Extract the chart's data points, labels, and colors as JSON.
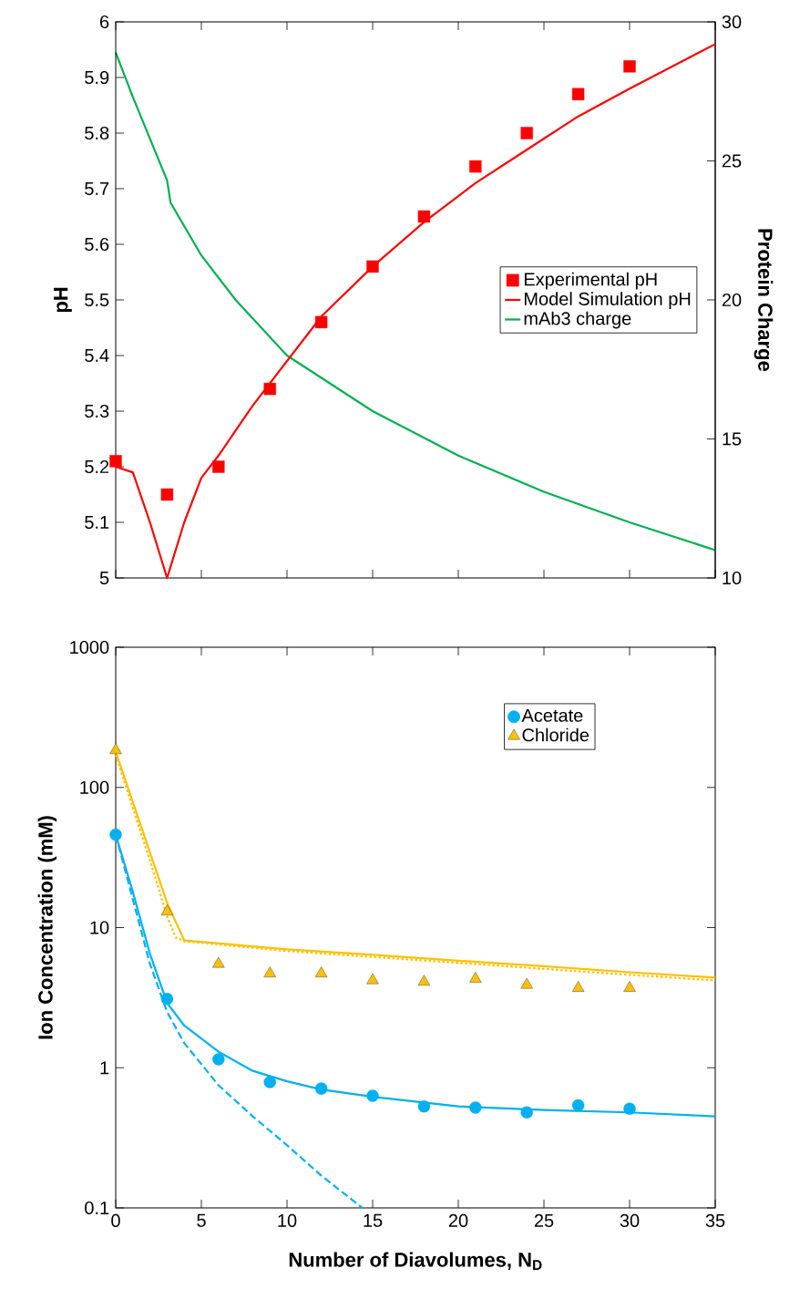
{
  "chart_data": [
    {
      "type": "scatter",
      "ylabel": "pH",
      "y2label": "Protein Charge",
      "xlim": [
        0,
        35
      ],
      "xticks": [
        0,
        5,
        10,
        15,
        20,
        25,
        30,
        35
      ],
      "ylim": [
        5,
        6
      ],
      "yticks": [
        5,
        5.1,
        5.2,
        5.3,
        5.4,
        5.5,
        5.6,
        5.7,
        5.8,
        5.9,
        6
      ],
      "y2lim": [
        10,
        30
      ],
      "y2ticks": [
        10,
        15,
        20,
        25,
        30
      ],
      "tick_labels": "y",
      "grid": false,
      "legend": "right",
      "series": [
        {
          "name": "Experimental pH",
          "marker": "square",
          "color": "#ff0000",
          "x": [
            0,
            3,
            6,
            9,
            12,
            15,
            18,
            21,
            24,
            27,
            30
          ],
          "values": [
            5.21,
            5.15,
            5.2,
            5.34,
            5.46,
            5.56,
            5.65,
            5.74,
            5.8,
            5.87,
            5.92
          ]
        },
        {
          "name": "Model Simulation pH",
          "type": "line",
          "marker": "none",
          "line_style": "solid",
          "color": "#ff0000",
          "x": [
            0,
            1,
            2,
            3,
            4,
            5,
            6,
            8,
            10,
            12,
            15,
            18,
            21,
            24,
            27,
            30,
            35
          ],
          "values": [
            5.2,
            5.19,
            5.1,
            5.0,
            5.1,
            5.18,
            5.22,
            5.31,
            5.39,
            5.47,
            5.56,
            5.64,
            5.71,
            5.77,
            5.83,
            5.88,
            5.96
          ]
        },
        {
          "name": "mAb3 charge",
          "type": "line",
          "marker": "none",
          "line_style": "solid",
          "axis": "y2",
          "color": "#00b050",
          "x": [
            0,
            1,
            2,
            3,
            3.2,
            5,
            7,
            10,
            15,
            20,
            25,
            30,
            35
          ],
          "values": [
            28.9,
            27.3,
            25.8,
            24.3,
            23.5,
            21.6,
            20.0,
            18.0,
            16.0,
            14.4,
            13.1,
            12.0,
            11.0
          ]
        }
      ]
    },
    {
      "type": "scatter",
      "xlabel": "Number of Diavolumes, N$_{D}$",
      "ylabel": "Ion Concentration (mM)",
      "log": "y",
      "xlim": [
        0,
        35
      ],
      "xticks": [
        0,
        5,
        10,
        15,
        20,
        25,
        30,
        35
      ],
      "ylim": [
        0.1,
        1000
      ],
      "yticks": [
        0.1,
        1,
        10,
        100,
        1000
      ],
      "grid": false,
      "legend": "top right",
      "series": [
        {
          "name": "Acetate",
          "marker": "circle",
          "color": "#00b0f0",
          "x": [
            0,
            3,
            6,
            9,
            12,
            15,
            18,
            21,
            24,
            27,
            30
          ],
          "values": [
            46,
            3.1,
            1.15,
            0.79,
            0.71,
            0.63,
            0.53,
            0.52,
            0.48,
            0.54,
            0.51
          ]
        },
        {
          "name": "Chloride",
          "type": "scatter",
          "marker": "triangle",
          "color": "#ffc000",
          "x": [
            0,
            3,
            6,
            9,
            12,
            15,
            18,
            21,
            24,
            27,
            30
          ],
          "values": [
            184,
            13,
            5.5,
            4.7,
            4.7,
            4.2,
            4.1,
            4.3,
            3.9,
            3.7,
            3.7
          ]
        },
        {
          "type": "line",
          "marker": "none",
          "line_style": "solid",
          "color": "#00b0f0",
          "x": [
            0,
            1,
            2,
            3,
            4,
            6,
            8,
            10,
            12,
            15,
            20,
            25,
            30,
            35
          ],
          "values": [
            46,
            18,
            6.5,
            2.9,
            2.0,
            1.3,
            0.95,
            0.8,
            0.7,
            0.62,
            0.53,
            0.5,
            0.48,
            0.45
          ]
        },
        {
          "type": "line",
          "marker": "none",
          "line_style": "dashed",
          "color": "#00b0f0",
          "x": [
            0,
            2,
            3,
            4,
            6,
            8,
            10,
            12,
            14.4
          ],
          "values": [
            46,
            5.5,
            2.5,
            1.5,
            0.75,
            0.45,
            0.28,
            0.17,
            0.1
          ]
        },
        {
          "type": "line",
          "marker": "none",
          "line_style": "solid",
          "color": "#ffc000",
          "x": [
            0,
            3,
            4,
            10,
            15,
            20,
            25,
            30,
            35
          ],
          "values": [
            180,
            15,
            8.1,
            7.0,
            6.4,
            5.8,
            5.3,
            4.8,
            4.4
          ]
        },
        {
          "type": "line",
          "marker": "none",
          "line_style": "dotted",
          "color": "#ffc000",
          "x": [
            0,
            2,
            3,
            3.5,
            4,
            10,
            20,
            30,
            35
          ],
          "values": [
            170,
            30,
            12,
            8.5,
            8.0,
            6.8,
            5.6,
            4.6,
            4.2
          ]
        }
      ]
    }
  ]
}
